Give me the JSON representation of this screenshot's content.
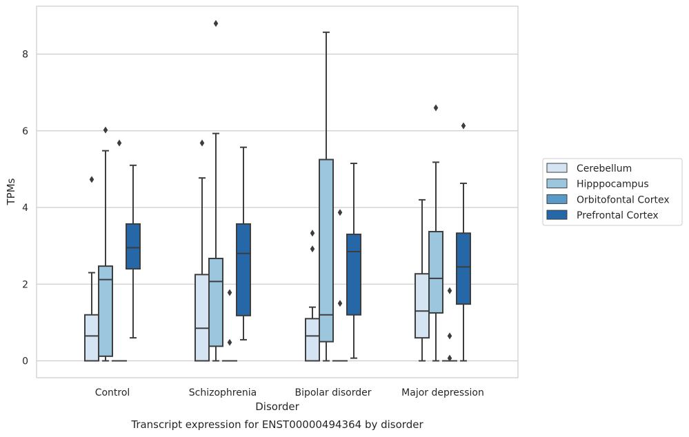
{
  "chart_data": {
    "type": "box",
    "title": "Transcript expression for ENST00000494364 by disorder",
    "xlabel": "Disorder",
    "ylabel": "TPMs",
    "ylim": [
      -0.4,
      9.2
    ],
    "yticks": [
      0,
      2,
      4,
      6,
      8
    ],
    "grid": true,
    "legend_position": "right",
    "categories": [
      "Control",
      "Schizophrenia",
      "Bipolar disorder",
      "Major depression"
    ],
    "series": [
      {
        "name": "Cerebellum",
        "color": "#d4e4f2",
        "boxes": [
          {
            "whisker_low": 0,
            "q1": 0,
            "median": 0.65,
            "q3": 1.2,
            "whisker_high": 2.3,
            "outliers": [
              4.73
            ]
          },
          {
            "whisker_low": 0,
            "q1": 0,
            "median": 0.85,
            "q3": 2.25,
            "whisker_high": 4.77,
            "outliers": [
              5.68
            ]
          },
          {
            "whisker_low": 0,
            "q1": 0,
            "median": 0.65,
            "q3": 1.1,
            "whisker_high": 1.4,
            "outliers": [
              2.92,
              3.33
            ]
          },
          {
            "whisker_low": 0,
            "q1": 0.6,
            "median": 1.3,
            "q3": 2.27,
            "whisker_high": 4.2,
            "outliers": []
          }
        ]
      },
      {
        "name": "Hipppocampus",
        "color": "#9bc6de",
        "boxes": [
          {
            "whisker_low": 0,
            "q1": 0.12,
            "median": 2.12,
            "q3": 2.47,
            "whisker_high": 5.48,
            "outliers": [
              6.02
            ]
          },
          {
            "whisker_low": 0,
            "q1": 0.38,
            "median": 2.07,
            "q3": 2.67,
            "whisker_high": 5.93,
            "outliers": [
              8.8
            ]
          },
          {
            "whisker_low": 0,
            "q1": 0.5,
            "median": 1.2,
            "q3": 5.25,
            "whisker_high": 8.57,
            "outliers": []
          },
          {
            "whisker_low": 0,
            "q1": 1.25,
            "median": 2.15,
            "q3": 3.37,
            "whisker_high": 5.18,
            "outliers": [
              6.6
            ]
          }
        ]
      },
      {
        "name": "Orbitofontal Cortex",
        "color": "#5a9ac8",
        "boxes": [
          {
            "whisker_low": 0,
            "q1": 0,
            "median": 0,
            "q3": 0,
            "whisker_high": 0,
            "outliers": [
              5.68
            ]
          },
          {
            "whisker_low": 0,
            "q1": 0,
            "median": 0,
            "q3": 0,
            "whisker_high": 0,
            "outliers": [
              0.48,
              1.78
            ]
          },
          {
            "whisker_low": 0,
            "q1": 0,
            "median": 0,
            "q3": 0,
            "whisker_high": 0,
            "outliers": [
              1.5,
              3.87
            ]
          },
          {
            "whisker_low": 0,
            "q1": 0,
            "median": 0,
            "q3": 0,
            "whisker_high": 0,
            "outliers": [
              0.07,
              0.65,
              1.83
            ]
          }
        ]
      },
      {
        "name": "Prefrontal Cortex",
        "color": "#2667a8",
        "boxes": [
          {
            "whisker_low": 0.6,
            "q1": 2.4,
            "median": 2.95,
            "q3": 3.57,
            "whisker_high": 5.1,
            "outliers": []
          },
          {
            "whisker_low": 0.55,
            "q1": 1.18,
            "median": 2.8,
            "q3": 3.57,
            "whisker_high": 5.57,
            "outliers": []
          },
          {
            "whisker_low": 0.07,
            "q1": 1.2,
            "median": 2.85,
            "q3": 3.3,
            "whisker_high": 5.15,
            "outliers": []
          },
          {
            "whisker_low": 0,
            "q1": 1.48,
            "median": 2.45,
            "q3": 3.33,
            "whisker_high": 4.63,
            "outliers": [
              6.13
            ]
          }
        ]
      }
    ]
  }
}
